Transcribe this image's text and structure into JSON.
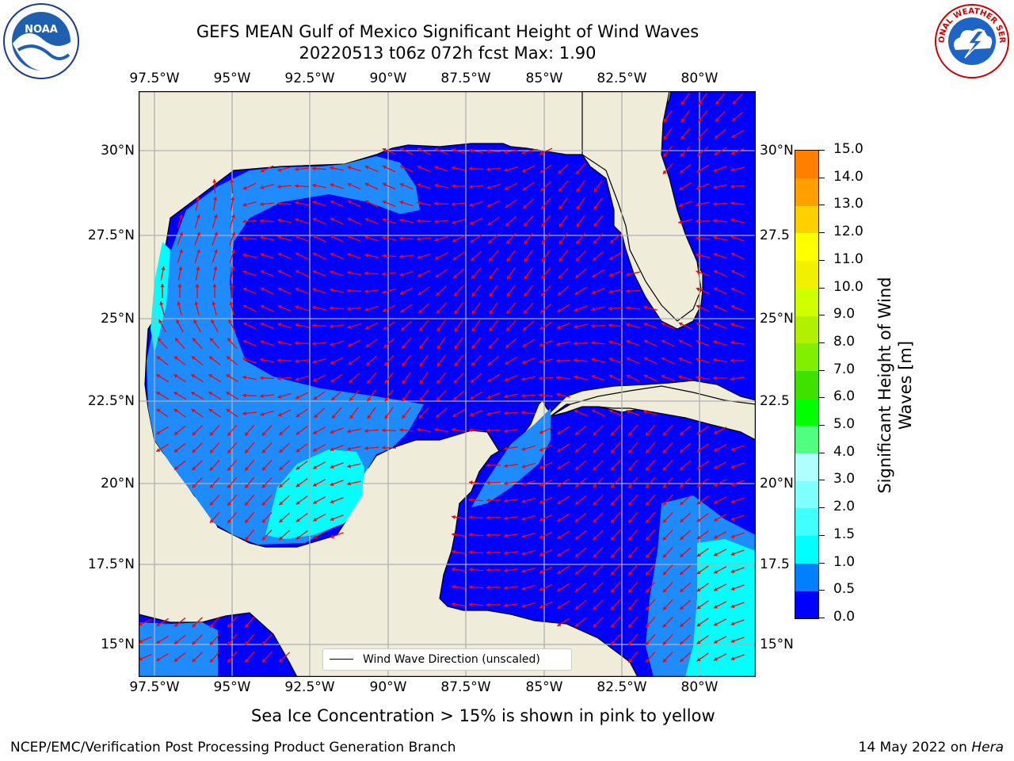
{
  "title_line1": "GEFS MEAN Gulf of Mexico Significant Height of Wind Waves",
  "title_line2": "20220513 t06z 072h fcst   Max: 1.90",
  "logos": {
    "left": "noaa-logo",
    "right": "national-weather-service-logo",
    "left_text": "NOAA",
    "right_text": "NATIONAL WEATHER SERVICE"
  },
  "lon_ticks": [
    "97.5°W",
    "95°W",
    "92.5°W",
    "90°W",
    "87.5°W",
    "85°W",
    "82.5°W",
    "80°W"
  ],
  "lat_ticks_left": [
    "30°N",
    "27.5°N",
    "25°N",
    "22.5°N",
    "20°N",
    "17.5°N",
    "15°N"
  ],
  "lat_ticks_right": [
    "30°N",
    "27.5",
    "25°N",
    "22.5",
    "20°N",
    "17.5",
    "15°N"
  ],
  "legend_label": "Wind Wave Direction (unscaled)",
  "colorbar": {
    "title_line1": "Significant Height of Wind",
    "title_line2": "Waves [m]",
    "labels": [
      "15.0",
      "14.0",
      "13.0",
      "12.0",
      "11.0",
      "10.0",
      "9.0",
      "8.0",
      "7.0",
      "6.0",
      "5.0",
      "4.0",
      "3.0",
      "2.0",
      "1.5",
      "1.0",
      "0.5",
      "0.0"
    ],
    "colors": [
      "#0000ff",
      "#0080ff",
      "#00ffff",
      "#40ffff",
      "#80ffff",
      "#b0ffff",
      "#50ff80",
      "#00ff00",
      "#40e000",
      "#80f000",
      "#b0f000",
      "#d0ff00",
      "#f0f000",
      "#ffff00",
      "#ffd000",
      "#ffa000",
      "#ff8000",
      "#ff5000",
      "#ff2000",
      "#ff0000"
    ]
  },
  "colors": {
    "land": "#efedda",
    "ocean_low": "#0000ff",
    "ocean_mid": "#1e8cff",
    "ocean_high": "#00ffff",
    "arrow": "#ff0000",
    "grid": "#b0b0b0"
  },
  "sea_ice_note": "Sea Ice Concentration > 15% is shown in pink to yellow",
  "footer_left": "NCEP/EMC/Verification Post Processing Product Generation Branch",
  "footer_right_date": "14 May 2022 on ",
  "footer_right_host": "Hera"
}
